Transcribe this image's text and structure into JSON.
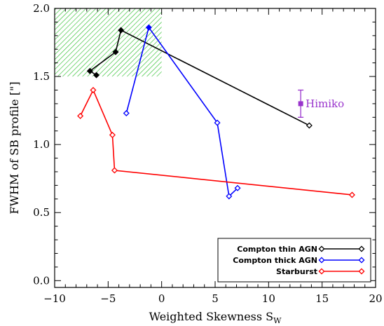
{
  "chart_data": {
    "type": "line",
    "xlabel": "Weighted Skewness",
    "xlabel_subscript": "W",
    "xlabel_symbol": "S",
    "ylabel": "FWHM of SB profile [\"]",
    "xlim": [
      -10,
      20
    ],
    "ylim": [
      -0.05,
      2.0
    ],
    "x_ticks": [
      -10,
      -5,
      0,
      5,
      10,
      15,
      20
    ],
    "y_ticks": [
      0.0,
      0.5,
      1.0,
      1.5,
      2.0
    ],
    "x_tick_labels": [
      "−10",
      "−5",
      "0",
      "5",
      "10",
      "15",
      "20"
    ],
    "y_tick_labels": [
      "0.0",
      "0.5",
      "1.0",
      "1.5",
      "2.0"
    ],
    "grid": false,
    "legend_position": "bottom-right",
    "shaded_region": {
      "x": [
        -10,
        0
      ],
      "y": [
        1.5,
        2.0
      ],
      "color": "#22bb22",
      "style": "hatched"
    },
    "series": [
      {
        "name": "Compton thin AGN",
        "color": "#000000",
        "points": [
          {
            "x": 13.8,
            "y": 1.14,
            "open": true
          },
          {
            "x": -3.8,
            "y": 1.84,
            "open": false
          },
          {
            "x": -4.3,
            "y": 1.68,
            "open": false
          },
          {
            "x": -6.7,
            "y": 1.54,
            "open": false
          },
          {
            "x": -6.1,
            "y": 1.51,
            "open": false
          }
        ]
      },
      {
        "name": "Compton thick AGN",
        "color": "#0000ff",
        "points": [
          {
            "x": 7.1,
            "y": 0.68,
            "open": true
          },
          {
            "x": 6.3,
            "y": 0.62,
            "open": true
          },
          {
            "x": 5.2,
            "y": 1.16,
            "open": true
          },
          {
            "x": -1.2,
            "y": 1.86,
            "open": false
          },
          {
            "x": -3.3,
            "y": 1.23,
            "open": true
          }
        ]
      },
      {
        "name": "Starburst",
        "color": "#ff0000",
        "points": [
          {
            "x": 17.8,
            "y": 0.63,
            "open": true
          },
          {
            "x": -4.4,
            "y": 0.81,
            "open": true
          },
          {
            "x": -4.6,
            "y": 1.07,
            "open": true
          },
          {
            "x": -6.4,
            "y": 1.4,
            "open": true
          },
          {
            "x": -7.6,
            "y": 1.21,
            "open": true
          }
        ]
      }
    ],
    "annotations": [
      {
        "label": "Himiko",
        "x": 13.0,
        "y": 1.3,
        "yerr": 0.1,
        "color": "#9933cc"
      }
    ]
  }
}
